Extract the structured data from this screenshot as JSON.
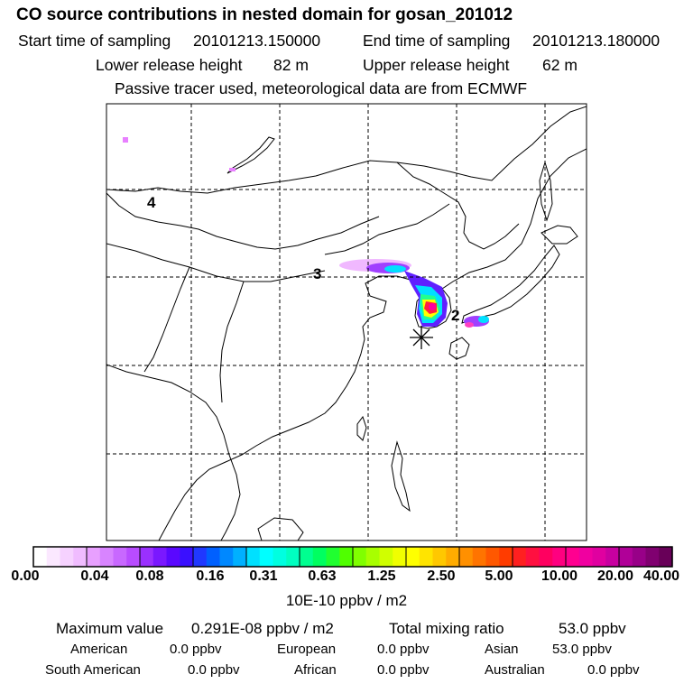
{
  "header": {
    "title": "CO  source contributions in nested domain for gosan_201012",
    "start_label": "Start time of sampling",
    "start_value": "20101213.150000",
    "end_label": "End time of sampling",
    "end_value": "20101213.180000",
    "lower_label": "Lower release height",
    "lower_value": "82 m",
    "upper_label": "Upper release height",
    "upper_value": "62 m",
    "note": "Passive tracer used, meteorological data are from ECMWF"
  },
  "map": {
    "day_labels": [
      "4",
      "3",
      "2"
    ],
    "receptor_marker": "asterisk-marker",
    "plume_colors": [
      "#ffd0ff",
      "#e080ff",
      "#b040ff",
      "#6020ff",
      "#00e0ff",
      "#20ff90",
      "#ffff00",
      "#ff8000",
      "#ff2040",
      "#ff00a0"
    ]
  },
  "legend": {
    "ticks": [
      "0.00",
      "0.04",
      "0.08",
      "0.16",
      "0.31",
      "0.63",
      "1.25",
      "2.50",
      "5.00",
      "10.00",
      "20.00",
      "40.00"
    ],
    "colors": [
      "#ffffff",
      "#fbe8ff",
      "#f6d2ff",
      "#f0bcff",
      "#e8a0ff",
      "#d884ff",
      "#c868ff",
      "#b84cff",
      "#9a30ff",
      "#7a18ff",
      "#5a08ff",
      "#3a10ff",
      "#2038ff",
      "#0060ff",
      "#0088ff",
      "#00b0ff",
      "#00e0ff",
      "#00ffff",
      "#00ffe0",
      "#00ffc0",
      "#00ff90",
      "#00ff60",
      "#20ff30",
      "#50ff00",
      "#80ff00",
      "#a8ff00",
      "#d0ff00",
      "#f0ff00",
      "#ffff00",
      "#ffe400",
      "#ffc800",
      "#ffac00",
      "#ff9000",
      "#ff7400",
      "#ff5800",
      "#ff3c00",
      "#ff2020",
      "#ff1040",
      "#ff0060",
      "#ff0080",
      "#ff0090",
      "#f000a0",
      "#e000a0",
      "#c800a0",
      "#b00098",
      "#980088",
      "#800070",
      "#680058"
    ],
    "units": "10E-10 ppbv / m2"
  },
  "stats": {
    "max_label": "Maximum value",
    "max_value": "0.291E-08 ppbv / m2",
    "total_label": "Total mixing ratio",
    "total_value": "53.0 ppbv",
    "regions": [
      {
        "name": "American",
        "value": "0.0 ppbv"
      },
      {
        "name": "European",
        "value": "0.0 ppbv"
      },
      {
        "name": "Asian",
        "value": "53.0 ppbv"
      },
      {
        "name": "South American",
        "value": "0.0 ppbv"
      },
      {
        "name": "African",
        "value": "0.0 ppbv"
      },
      {
        "name": "Australian",
        "value": "0.0 ppbv"
      }
    ]
  }
}
